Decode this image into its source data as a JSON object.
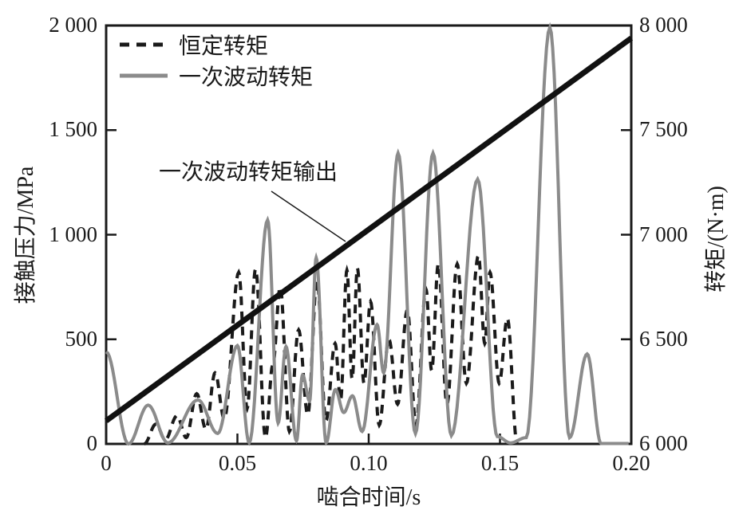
{
  "chart_data": {
    "type": "line",
    "title": "",
    "xlabel": "啮合时间/s",
    "ylabel_left": "接触压力/MPa",
    "ylabel_right": "转矩/(N·m)",
    "xlim": [
      0,
      0.2
    ],
    "ylim_left": [
      0,
      2000
    ],
    "ylim_right": [
      6000,
      8000
    ],
    "grid": false,
    "legend_position": "top-left-inside",
    "x_ticks": {
      "values": [
        0,
        0.05,
        0.1,
        0.15,
        0.2
      ],
      "labels": [
        "0",
        "0.05",
        "0.10",
        "0.15",
        "0.20"
      ]
    },
    "y_ticks_left": {
      "values": [
        0,
        500,
        1000,
        1500,
        2000
      ],
      "labels": [
        "0",
        "500",
        "1 000",
        "1 500",
        "2 000"
      ]
    },
    "y_ticks_right": {
      "values": [
        6000,
        6500,
        7000,
        7500,
        8000
      ],
      "labels": [
        "6 000",
        "6 500",
        "7 000",
        "7 500",
        "8 000"
      ]
    },
    "legend": [
      {
        "label": "恒定转矩",
        "style": "dashed",
        "color": "#1a1a1a"
      },
      {
        "label": "一次波动转矩",
        "style": "solid",
        "color": "#8b8b8b"
      }
    ],
    "annotation": {
      "text": "一次波动转矩输出",
      "points_to_series": "一次波动转矩输出"
    },
    "series": [
      {
        "name": "恒定转矩",
        "axis": "left",
        "style": "dashed",
        "color": "#1a1a1a",
        "width": 4,
        "dash": "11 8",
        "interp": "cosine",
        "points": [
          [
            0.0145,
            0
          ],
          [
            0.019,
            95
          ],
          [
            0.0225,
            20
          ],
          [
            0.027,
            135
          ],
          [
            0.0305,
            30
          ],
          [
            0.0345,
            240
          ],
          [
            0.038,
            70
          ],
          [
            0.0415,
            340
          ],
          [
            0.045,
            120
          ],
          [
            0.0505,
            820
          ],
          [
            0.0537,
            170
          ],
          [
            0.0569,
            835
          ],
          [
            0.0607,
            30
          ],
          [
            0.0635,
            380
          ],
          [
            0.0663,
            750
          ],
          [
            0.0698,
            60
          ],
          [
            0.0733,
            545
          ],
          [
            0.0768,
            140
          ],
          [
            0.0803,
            780
          ],
          [
            0.0837,
            110
          ],
          [
            0.0872,
            480
          ],
          [
            0.0893,
            210
          ],
          [
            0.0917,
            830
          ],
          [
            0.0937,
            310
          ],
          [
            0.0957,
            840
          ],
          [
            0.0982,
            290
          ],
          [
            0.1007,
            680
          ],
          [
            0.104,
            90
          ],
          [
            0.1077,
            500
          ],
          [
            0.111,
            190
          ],
          [
            0.1147,
            640
          ],
          [
            0.118,
            90
          ],
          [
            0.1218,
            740
          ],
          [
            0.124,
            350
          ],
          [
            0.1265,
            860
          ],
          [
            0.1298,
            190
          ],
          [
            0.1337,
            860
          ],
          [
            0.1372,
            290
          ],
          [
            0.1418,
            900
          ],
          [
            0.1442,
            480
          ],
          [
            0.1462,
            820
          ],
          [
            0.1497,
            290
          ],
          [
            0.1528,
            600
          ],
          [
            0.1565,
            3
          ]
        ]
      },
      {
        "name": "一次波动转矩",
        "axis": "left",
        "style": "solid",
        "color": "#8b8b8b",
        "width": 4,
        "dash": "",
        "interp": "cosine",
        "points": [
          [
            0,
            440
          ],
          [
            0.0085,
            0
          ],
          [
            0.016,
            185
          ],
          [
            0.0235,
            5
          ],
          [
            0.035,
            210
          ],
          [
            0.0425,
            50
          ],
          [
            0.05,
            470
          ],
          [
            0.0545,
            5
          ],
          [
            0.0615,
            1070
          ],
          [
            0.0655,
            100
          ],
          [
            0.0685,
            465
          ],
          [
            0.0725,
            15
          ],
          [
            0.0748,
            330
          ],
          [
            0.0775,
            205
          ],
          [
            0.08,
            890
          ],
          [
            0.0838,
            5
          ],
          [
            0.0873,
            260
          ],
          [
            0.0905,
            150
          ],
          [
            0.0938,
            230
          ],
          [
            0.0975,
            60
          ],
          [
            0.1032,
            570
          ],
          [
            0.1057,
            340
          ],
          [
            0.1112,
            1390
          ],
          [
            0.1178,
            50
          ],
          [
            0.1245,
            1390
          ],
          [
            0.1315,
            40
          ],
          [
            0.1415,
            1265
          ],
          [
            0.149,
            35
          ],
          [
            0.154,
            5
          ],
          [
            0.16,
            30
          ],
          [
            0.169,
            1990
          ],
          [
            0.1765,
            30
          ],
          [
            0.1832,
            430
          ],
          [
            0.1885,
            2
          ],
          [
            0.199,
            2
          ]
        ]
      },
      {
        "name": "一次波动转矩输出",
        "axis": "right",
        "style": "thick-solid",
        "color": "#111111",
        "width": 7,
        "dash": "",
        "interp": "linear",
        "points": [
          [
            0,
            6110
          ],
          [
            0.2,
            7940
          ]
        ]
      }
    ]
  }
}
